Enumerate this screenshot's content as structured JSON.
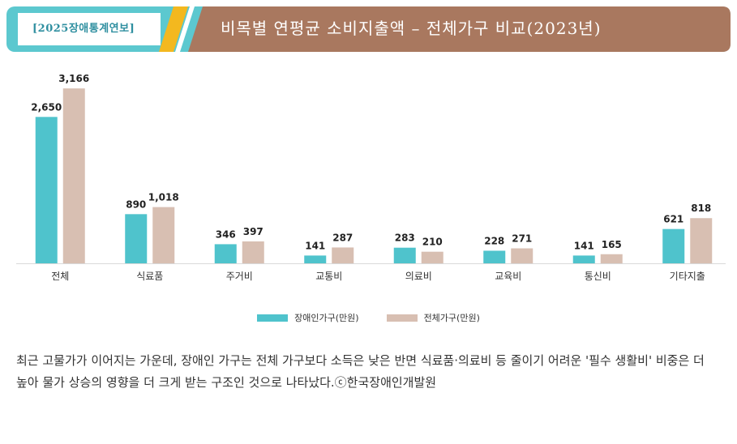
{
  "banner": {
    "tag": "[2025장애통계연보]",
    "title": "비목별 연평균 소비지출액 – 전체가구 비교(2023년)"
  },
  "colors": {
    "disabled": "#4fc3cc",
    "all": "#d8bfb2",
    "banner_teal": "#5cc8cf",
    "banner_brown": "#a9785f",
    "banner_yellow": "#f3b81f",
    "banner_stripe": "#f4f1ec"
  },
  "chart_data": {
    "type": "bar",
    "categories": [
      "전체",
      "식료품",
      "주거비",
      "교통비",
      "의료비",
      "교육비",
      "통신비",
      "기타지출"
    ],
    "series": [
      {
        "name": "장애인가구(만원)",
        "values": [
          2650,
          890,
          346,
          141,
          283,
          228,
          141,
          621
        ],
        "labels": [
          "2,650",
          "890",
          "346",
          "141",
          "283",
          "228",
          "141",
          "621"
        ]
      },
      {
        "name": "전체가구(만원)",
        "values": [
          3166,
          1018,
          397,
          287,
          210,
          271,
          165,
          818
        ],
        "labels": [
          "3,166",
          "1,018",
          "397",
          "287",
          "210",
          "271",
          "165",
          "818"
        ]
      }
    ],
    "title": "비목별 연평균 소비지출액 – 전체가구 비교(2023년)",
    "ylim": [
      0,
      3300
    ],
    "grid": false,
    "legend": "bottom-center"
  },
  "caption": "최근 고물가가 이어지는 가운데, 장애인 가구는 전체 가구보다 소득은 낮은 반면 식료품·의료비 등 줄이기 어려운 '필수 생활비' 비중은 더 높아 물가 상승의 영향을 더 크게 받는 구조인 것으로 나타났다.ⓒ한국장애인개발원"
}
